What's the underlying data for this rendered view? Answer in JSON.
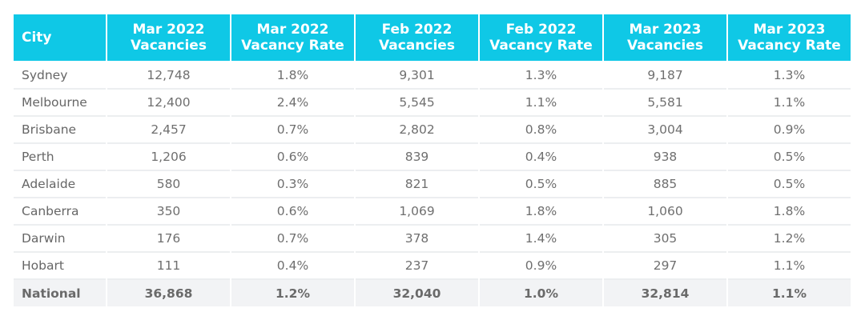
{
  "table": {
    "headers": [
      {
        "line1": "City",
        "line2": ""
      },
      {
        "line1": "Mar 2022",
        "line2": "Vacancies"
      },
      {
        "line1": "Mar 2022",
        "line2": "Vacancy Rate"
      },
      {
        "line1": "Feb 2022",
        "line2": "Vacancies"
      },
      {
        "line1": "Feb 2022",
        "line2": "Vacancy Rate"
      },
      {
        "line1": "Mar 2023",
        "line2": "Vacancies"
      },
      {
        "line1": "Mar 2023",
        "line2": "Vacancy Rate"
      }
    ],
    "rows": [
      [
        "Sydney",
        "12,748",
        "1.8%",
        "9,301",
        "1.3%",
        "9,187",
        "1.3%"
      ],
      [
        "Melbourne",
        "12,400",
        "2.4%",
        "5,545",
        "1.1%",
        "5,581",
        "1.1%"
      ],
      [
        "Brisbane",
        "2,457",
        "0.7%",
        "2,802",
        "0.8%",
        "3,004",
        "0.9%"
      ],
      [
        "Perth",
        "1,206",
        "0.6%",
        "839",
        "0.4%",
        "938",
        "0.5%"
      ],
      [
        "Adelaide",
        "580",
        "0.3%",
        "821",
        "0.5%",
        "885",
        "0.5%"
      ],
      [
        "Canberra",
        "350",
        "0.6%",
        "1,069",
        "1.8%",
        "1,060",
        "1.8%"
      ],
      [
        "Darwin",
        "176",
        "0.7%",
        "378",
        "1.4%",
        "305",
        "1.2%"
      ],
      [
        "Hobart",
        "111",
        "0.4%",
        "237",
        "0.9%",
        "297",
        "1.1%"
      ]
    ],
    "total": [
      "National",
      "36,868",
      "1.2%",
      "32,040",
      "1.0%",
      "32,814",
      "1.1%"
    ]
  },
  "colors": {
    "header_bg": "#0fc8e6",
    "header_text": "#ffffff",
    "total_row_bg": "#f2f3f5",
    "body_text": "#6f6f6f"
  }
}
